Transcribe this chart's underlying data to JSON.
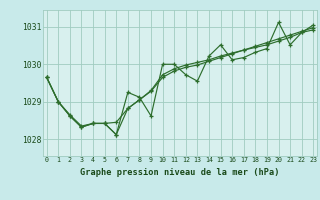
{
  "background_color": "#c8eaea",
  "plot_bg_color": "#d8f0ee",
  "grid_color": "#a0ccc0",
  "line_color": "#2d6e2d",
  "title": "Graphe pression niveau de la mer (hPa)",
  "xlim": [
    -0.3,
    23.3
  ],
  "ylim": [
    1027.55,
    1031.45
  ],
  "yticks": [
    1028,
    1029,
    1030,
    1031
  ],
  "xticks": [
    0,
    1,
    2,
    3,
    4,
    5,
    6,
    7,
    8,
    9,
    10,
    11,
    12,
    13,
    14,
    15,
    16,
    17,
    18,
    19,
    20,
    21,
    22,
    23
  ],
  "hours": [
    0,
    1,
    2,
    3,
    4,
    5,
    6,
    7,
    8,
    9,
    10,
    11,
    12,
    13,
    14,
    15,
    16,
    17,
    18,
    19,
    20,
    21,
    22,
    23
  ],
  "series1": [
    1029.65,
    1029.0,
    1028.62,
    1028.32,
    1028.42,
    1028.42,
    1028.12,
    1029.25,
    1029.12,
    1028.62,
    1030.0,
    1030.0,
    1029.72,
    1029.55,
    1030.22,
    1030.52,
    1030.12,
    1030.18,
    1030.32,
    1030.42,
    1031.12,
    1030.52,
    1030.85,
    1031.05
  ],
  "series2": [
    1029.65,
    1029.0,
    1028.65,
    1028.35,
    1028.42,
    1028.42,
    1028.45,
    1028.82,
    1029.05,
    1029.3,
    1029.72,
    1029.88,
    1029.98,
    1030.05,
    1030.12,
    1030.22,
    1030.3,
    1030.38,
    1030.45,
    1030.52,
    1030.62,
    1030.72,
    1030.85,
    1030.92
  ],
  "series3": [
    1029.65,
    1029.0,
    1028.62,
    1028.32,
    1028.42,
    1028.42,
    1028.12,
    1028.82,
    1029.05,
    1029.28,
    1029.65,
    1029.82,
    1029.92,
    1029.98,
    1030.08,
    1030.18,
    1030.28,
    1030.38,
    1030.48,
    1030.58,
    1030.68,
    1030.78,
    1030.88,
    1030.98
  ]
}
